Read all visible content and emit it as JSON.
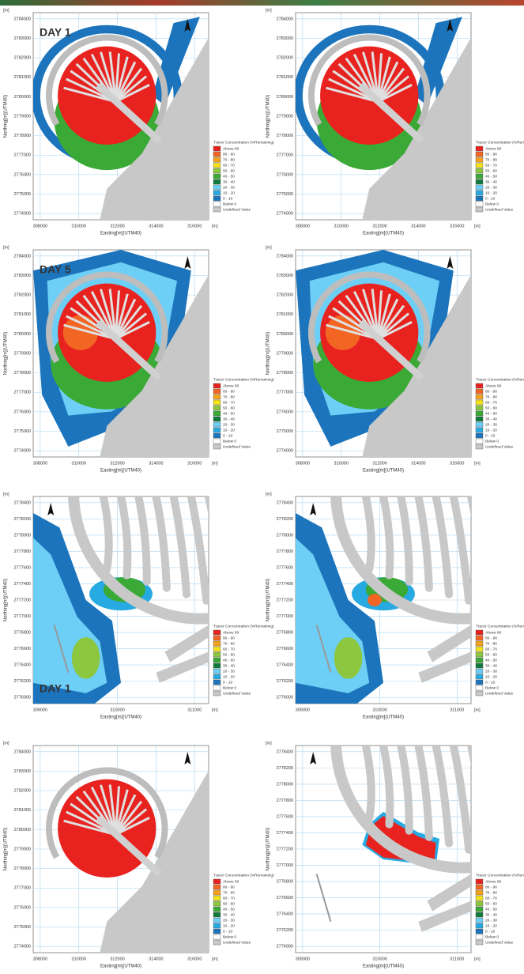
{
  "day_labels": [
    "DAY 1",
    "DAY 5",
    "DAY 1"
  ],
  "axis_labels": {
    "x": "Easting[m](UTM40)",
    "y": "Northing[m](UTM40)",
    "unit": "[m]"
  },
  "overview_axes": {
    "xticks": [
      308000,
      310000,
      312000,
      314000,
      316000
    ],
    "yticks": [
      2784000,
      2783000,
      2782000,
      2781000,
      2780000,
      2779000,
      2778000,
      2777000,
      2776000,
      2775000,
      2774000
    ]
  },
  "zoom_axes": {
    "xticks": [
      309000,
      310000,
      311000
    ],
    "yticks": [
      2778400,
      2778200,
      2778000,
      2777800,
      2777600,
      2777400,
      2777200,
      2777000,
      2776800,
      2776600,
      2776400,
      2776200,
      2776000
    ]
  },
  "legend": {
    "title": "Tracer Concentration (%Remaining)",
    "items": [
      "Above 90",
      "80 - 90",
      "70 - 80",
      "60 - 70",
      "50 - 60",
      "40 - 50",
      "30 - 40",
      "20 - 30",
      "10 - 20",
      "0 - 10",
      "Below 0",
      "Undefined Value"
    ],
    "colors": [
      "#e8231f",
      "#f26522",
      "#f7a21b",
      "#f4e21a",
      "#8dc63f",
      "#3aa935",
      "#0f7a3c",
      "#6dcff6",
      "#27aae1",
      "#1c75bc",
      "#ffffff",
      "#c8c8c8"
    ]
  }
}
